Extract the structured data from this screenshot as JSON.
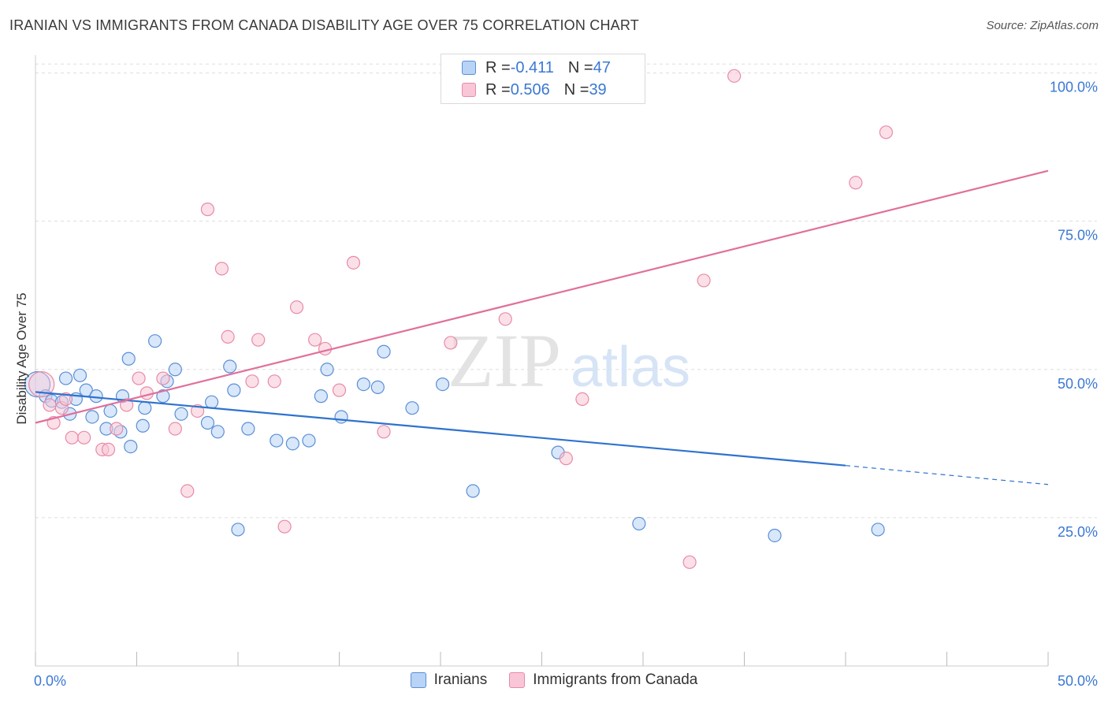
{
  "header": {
    "title": "IRANIAN VS IMMIGRANTS FROM CANADA DISABILITY AGE OVER 75 CORRELATION CHART",
    "source": "Source: ZipAtlas.com"
  },
  "watermark": {
    "zip": "ZIP",
    "atlas": "atlas"
  },
  "legend_top": [
    {
      "r_label": "R = ",
      "r_value": "-0.411",
      "n_label": "N = ",
      "n_value": "47"
    },
    {
      "r_label": "R = ",
      "r_value": "0.506",
      "n_label": "N = ",
      "n_value": "39"
    }
  ],
  "colors": {
    "blue_fill": "#b8d3f5",
    "blue_stroke": "#5a8fd6",
    "blue_line": "#2f72cf",
    "pink_fill": "#f8c6d6",
    "pink_stroke": "#e98aa8",
    "pink_line": "#e0709a",
    "axis_text": "#3a78d4",
    "grid": "#dddddd"
  },
  "chart_data": {
    "type": "scatter",
    "title": "IRANIAN VS IMMIGRANTS FROM CANADA DISABILITY AGE OVER 75 CORRELATION CHART",
    "xlabel": "",
    "ylabel": "Disability Age Over 75",
    "xlim": [
      0,
      50
    ],
    "ylim": [
      0,
      103
    ],
    "x_tick_labels": [
      "0.0%",
      "50.0%"
    ],
    "y_ticks": [
      25,
      50,
      75,
      100
    ],
    "y_tick_labels": [
      "25.0%",
      "50.0%",
      "75.0%",
      "100.0%"
    ],
    "grid": true,
    "legend_position": "bottom",
    "series": [
      {
        "name": "Iranians",
        "color": "#5a8fd6",
        "x": [
          0.1,
          0.5,
          0.8,
          1.3,
          1.5,
          1.7,
          2.0,
          2.2,
          2.5,
          2.8,
          3.0,
          3.5,
          3.7,
          4.2,
          4.3,
          4.6,
          4.7,
          5.3,
          5.4,
          5.9,
          6.3,
          6.5,
          6.9,
          7.2,
          8.5,
          8.7,
          9.0,
          9.6,
          9.8,
          10.0,
          10.5,
          11.9,
          12.7,
          13.5,
          14.1,
          14.4,
          15.1,
          16.2,
          16.9,
          17.2,
          18.6,
          20.1,
          21.6,
          25.8,
          29.8,
          36.5,
          41.6
        ],
        "y": [
          47.5,
          45.5,
          44.7,
          44.5,
          48.5,
          42.5,
          45.0,
          49.0,
          46.5,
          42.0,
          45.5,
          40.0,
          43.0,
          39.5,
          45.5,
          51.8,
          37.0,
          40.5,
          43.5,
          54.8,
          45.5,
          48.0,
          50.0,
          42.5,
          41.0,
          44.5,
          39.5,
          50.5,
          46.5,
          23.0,
          40.0,
          38.0,
          37.5,
          38.0,
          45.5,
          50.0,
          42.0,
          47.5,
          47.0,
          53.0,
          43.5,
          47.5,
          29.5,
          36.0,
          24.0,
          22.0,
          23.0
        ]
      },
      {
        "name": "Immigrants from Canada",
        "color": "#e98aa8",
        "x": [
          0.3,
          0.7,
          0.9,
          1.3,
          1.5,
          1.8,
          2.4,
          3.3,
          3.6,
          4.0,
          4.5,
          5.1,
          5.5,
          6.3,
          6.9,
          7.5,
          8.0,
          8.5,
          9.2,
          9.5,
          10.7,
          11.0,
          11.8,
          12.3,
          12.9,
          13.8,
          14.3,
          15.0,
          15.7,
          17.2,
          20.5,
          23.2,
          26.2,
          27.0,
          32.3,
          33.0,
          34.5,
          40.5,
          42.0
        ],
        "y": [
          47.5,
          44.0,
          41.0,
          43.5,
          45.0,
          38.5,
          38.5,
          36.5,
          36.5,
          40.0,
          44.0,
          48.5,
          46.0,
          48.5,
          40.0,
          29.5,
          43.0,
          77.0,
          67.0,
          55.5,
          48.0,
          55.0,
          48.0,
          23.5,
          60.5,
          55.0,
          53.5,
          46.5,
          68.0,
          39.5,
          54.5,
          58.5,
          35.0,
          45.0,
          17.5,
          65.0,
          99.5,
          81.5,
          90.0
        ]
      }
    ],
    "trend_lines": [
      {
        "series": "Iranians",
        "x": [
          0,
          40
        ],
        "y": [
          46.2,
          33.8
        ],
        "dashed_extension": [
          40,
          50
        ],
        "dashed_y": [
          33.8,
          30.6
        ]
      },
      {
        "series": "Immigrants from Canada",
        "x": [
          0,
          50
        ],
        "y": [
          41.0,
          83.5
        ]
      }
    ]
  },
  "legend_bottom": [
    {
      "label": "Iranians"
    },
    {
      "label": "Immigrants from Canada"
    }
  ]
}
